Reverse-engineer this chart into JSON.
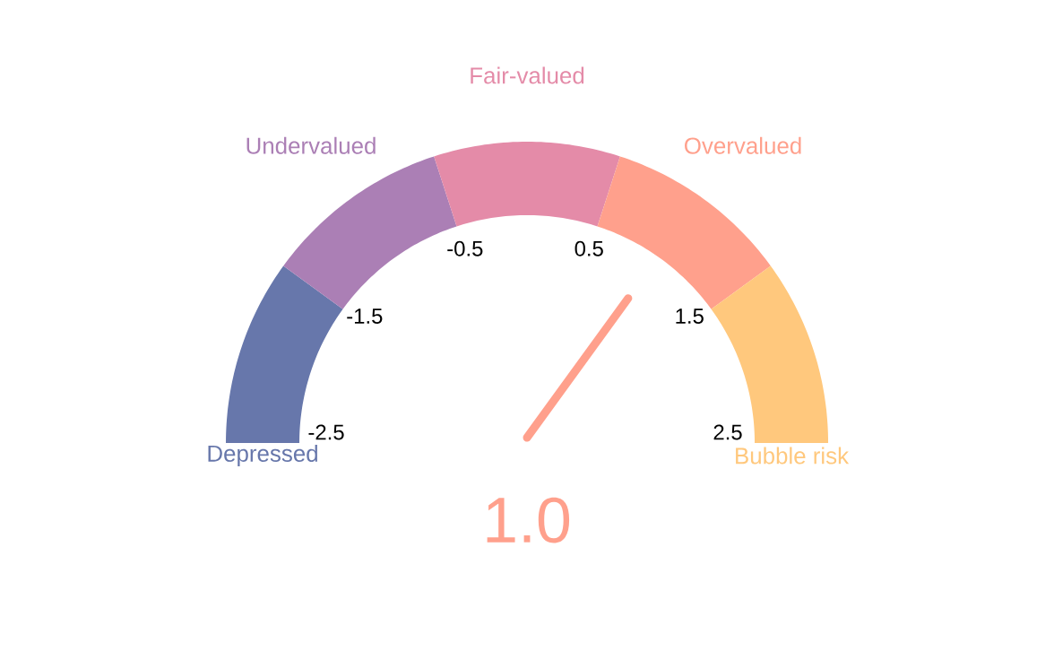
{
  "chart_data": {
    "type": "donut",
    "categories": [
      "Depressed",
      "Undervalued",
      "Fair-valued",
      "Overvalued",
      "Bubble risk"
    ],
    "values": [
      20,
      20,
      20,
      20,
      20
    ],
    "colors": [
      "#6777ab",
      "#ab7fb5",
      "#e48ba8",
      "#ffa08c",
      "#ffc87d"
    ],
    "needle": "Overvalued",
    "annotations": [
      "-2.5",
      "-1.5",
      "-0.5",
      "0.5",
      "1.5",
      "2.5",
      "1.0"
    ]
  }
}
